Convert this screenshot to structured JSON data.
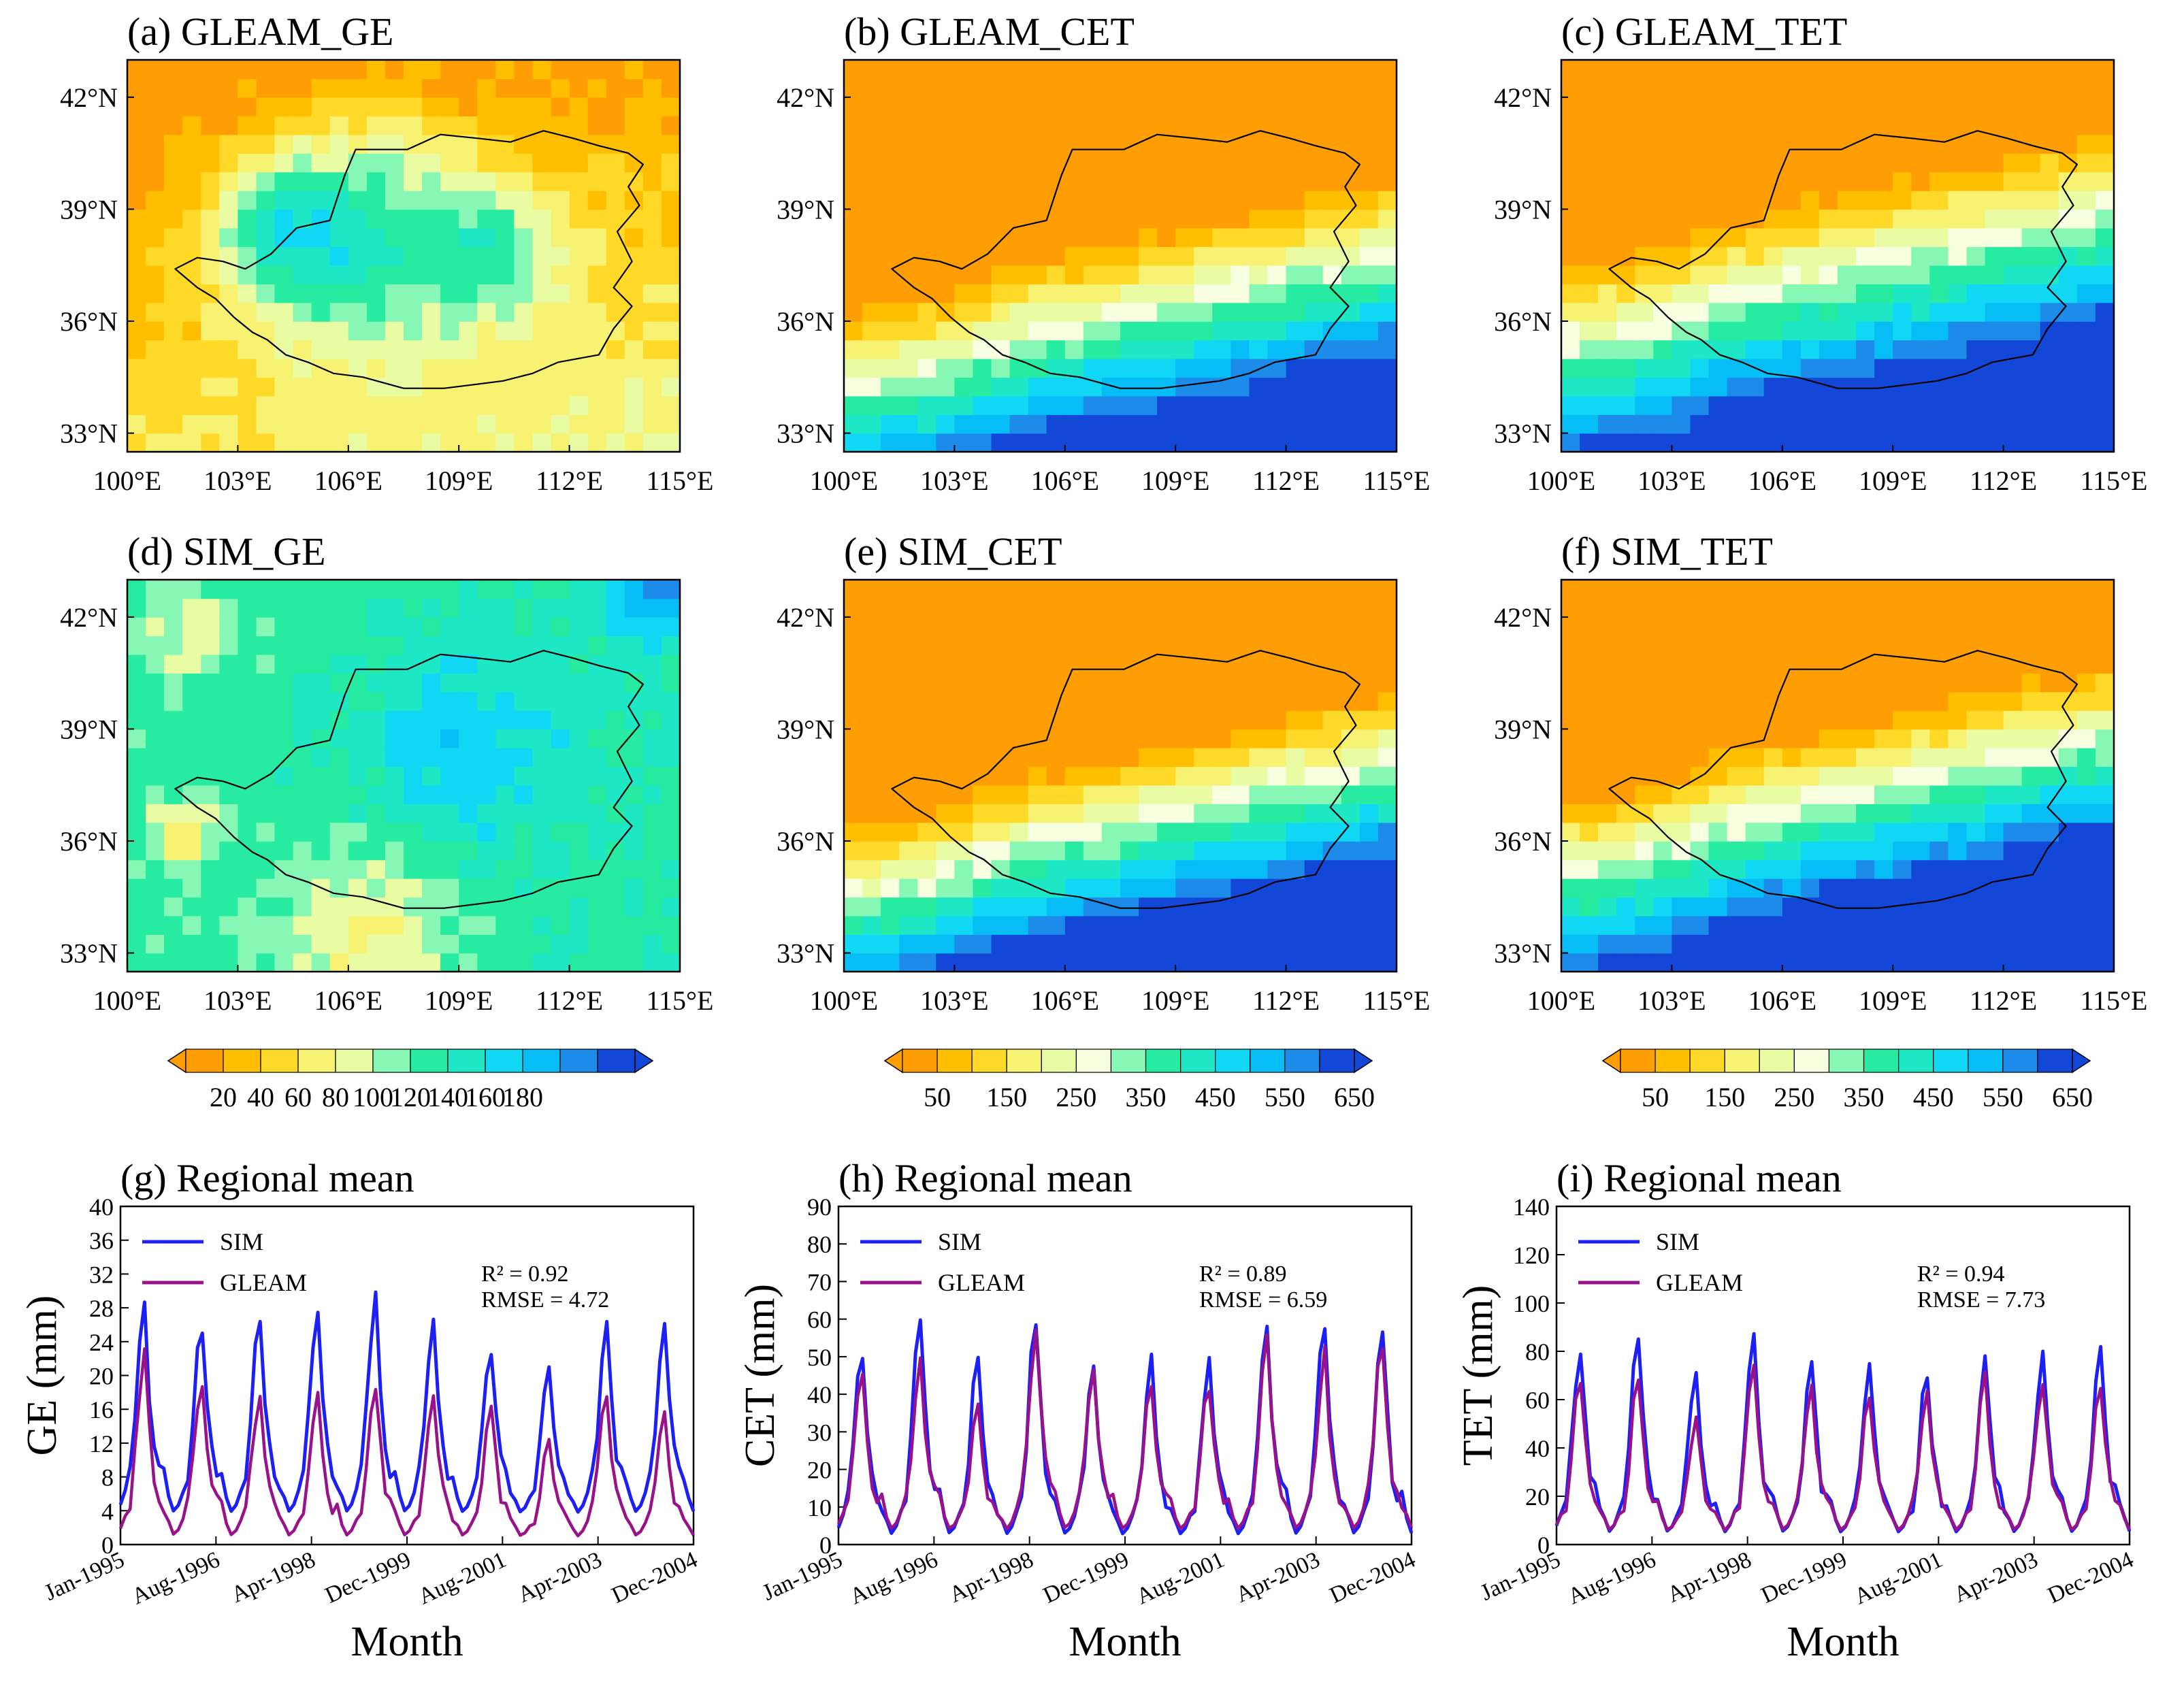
{
  "chart_data": [
    {
      "type": "heatmap",
      "title": "(a) GLEAM_GE",
      "colorbar": "ge",
      "xticks": [
        "100°E",
        "103°E",
        "106°E",
        "109°E",
        "112°E",
        "115°E"
      ],
      "yticks": [
        "33°N",
        "36°N",
        "39°N",
        "42°N"
      ],
      "xlim": [
        100,
        115
      ],
      "ylim": [
        32.5,
        43
      ],
      "field": {
        "a": 38,
        "b": [
          {
            "x": 106,
            "y": 38.5,
            "s": 3.3,
            "amp": 85
          },
          {
            "x": 104,
            "y": 38.5,
            "s": 1.6,
            "amp": 45
          },
          {
            "x": 110,
            "y": 38,
            "s": 1.9,
            "amp": 55
          }
        ],
        "gx": 1.5,
        "gy": -2.5
      }
    },
    {
      "type": "heatmap",
      "title": "(b) GLEAM_CET",
      "colorbar": "et",
      "xticks": [
        "100°E",
        "103°E",
        "106°E",
        "109°E",
        "112°E",
        "115°E"
      ],
      "yticks": [
        "33°N",
        "36°N",
        "39°N",
        "42°N"
      ],
      "xlim": [
        100,
        115
      ],
      "ylim": [
        32.5,
        43
      ],
      "field": {
        "a": 300,
        "ramp": [
          3,
          1,
          -135,
          108,
          36.3,
          60,
          230
        ]
      }
    },
    {
      "type": "heatmap",
      "title": "(c) GLEAM_TET",
      "colorbar": "et",
      "xticks": [
        "100°E",
        "103°E",
        "106°E",
        "109°E",
        "112°E",
        "115°E"
      ],
      "yticks": [
        "33°N",
        "36°N",
        "39°N",
        "42°N"
      ],
      "xlim": [
        100,
        115
      ],
      "ylim": [
        32.5,
        43
      ],
      "field": {
        "a": 330,
        "ramp": [
          3,
          1,
          -125,
          108,
          37.2,
          70,
          200
        ]
      }
    },
    {
      "type": "heatmap",
      "title": "(d) SIM_GE",
      "colorbar": "ge",
      "xticks": [
        "100°E",
        "103°E",
        "106°E",
        "109°E",
        "112°E",
        "115°E"
      ],
      "yticks": [
        "33°N",
        "36°N",
        "39°N",
        "42°N"
      ],
      "xlim": [
        100,
        115
      ],
      "ylim": [
        32.5,
        43
      ],
      "field": {
        "a": 110,
        "b": [
          {
            "x": 109,
            "y": 38.5,
            "s": 2.8,
            "amp": 30
          },
          {
            "x": 114.5,
            "y": 42.8,
            "s": 1.4,
            "amp": 50
          },
          {
            "x": 101.5,
            "y": 36.2,
            "s": 0.9,
            "amp": -50
          },
          {
            "x": 106.5,
            "y": 33.5,
            "s": 2.5,
            "amp": -40
          },
          {
            "x": 101.5,
            "y": 41.5,
            "s": 1.3,
            "amp": -30
          }
        ],
        "gx": 0.5,
        "gy": 0
      }
    },
    {
      "type": "heatmap",
      "title": "(e) SIM_CET",
      "colorbar": "et",
      "xticks": [
        "100°E",
        "103°E",
        "106°E",
        "109°E",
        "112°E",
        "115°E"
      ],
      "yticks": [
        "33°N",
        "36°N",
        "39°N",
        "42°N"
      ],
      "xlim": [
        100,
        115
      ],
      "ylim": [
        32.5,
        43
      ],
      "field": {
        "a": 300,
        "ramp": [
          3,
          1,
          -145,
          108,
          36.6,
          80,
          240
        ]
      }
    },
    {
      "type": "heatmap",
      "title": "(f) SIM_TET",
      "colorbar": "et",
      "xticks": [
        "100°E",
        "103°E",
        "106°E",
        "109°E",
        "112°E",
        "115°E"
      ],
      "yticks": [
        "33°N",
        "36°N",
        "39°N",
        "42°N"
      ],
      "xlim": [
        100,
        115
      ],
      "ylim": [
        32.5,
        43
      ],
      "field": {
        "a": 300,
        "ramp": [
          3,
          1,
          -140,
          108,
          37.3,
          90,
          230
        ]
      }
    },
    {
      "type": "line",
      "title": "(g) Regional mean",
      "xlabel": "Month",
      "ylabel": "GE (mm)",
      "ylim": [
        0,
        40
      ],
      "yticks": [
        "0",
        "4",
        "8",
        "12",
        "16",
        "20",
        "24",
        "28",
        "32",
        "36",
        "40"
      ],
      "xticks": [
        "Jan-1995",
        "Aug-1996",
        "Apr-1998",
        "Dec-1999",
        "Aug-2001",
        "Apr-2003",
        "Dec-2004"
      ],
      "stats": [
        "R² = 0.92",
        "RMSE = 4.72"
      ],
      "series": [
        {
          "name": "SIM",
          "peaks": [
            28,
            26,
            27,
            28,
            29,
            25.5,
            23,
            21,
            25.5,
            25.5
          ],
          "base": 3.5
        },
        {
          "name": "GLEAM",
          "peaks": [
            22.5,
            19.5,
            18,
            17.5,
            18.5,
            17.5,
            16,
            12.5,
            17.5,
            15.5
          ],
          "base": 0.8
        }
      ]
    },
    {
      "type": "line",
      "title": "(h) Regional mean",
      "xlabel": "Month",
      "ylabel": "CET (mm)",
      "ylim": [
        0,
        90
      ],
      "yticks": [
        "0",
        "10",
        "20",
        "30",
        "40",
        "50",
        "60",
        "70",
        "80",
        "90"
      ],
      "xticks": [
        "Jan-1995",
        "Aug-1996",
        "Apr-1998",
        "Dec-1999",
        "Aug-2001",
        "Apr-2003",
        "Dec-2004"
      ],
      "stats": [
        "R² = 0.89",
        "RMSE = 6.59"
      ],
      "series": [
        {
          "name": "SIM",
          "peaks": [
            52,
            61,
            51,
            58,
            48,
            49,
            49,
            56,
            60,
            57
          ],
          "base": 2
        },
        {
          "name": "GLEAM",
          "peaks": [
            45,
            48,
            37,
            56,
            46,
            43,
            43,
            53,
            50,
            54
          ],
          "base": 3.5
        }
      ]
    },
    {
      "type": "line",
      "title": "(i) Regional mean",
      "xlabel": "Month",
      "ylabel": "TET (mm)",
      "ylim": [
        0,
        140
      ],
      "yticks": [
        "0",
        "20",
        "40",
        "60",
        "80",
        "100",
        "120",
        "140"
      ],
      "xticks": [
        "Jan-1995",
        "Aug-1996",
        "Apr-1998",
        "Dec-1999",
        "Aug-2001",
        "Apr-2003",
        "Dec-2004"
      ],
      "stats": [
        "R² = 0.94",
        "RMSE = 7.73"
      ],
      "series": [
        {
          "name": "SIM",
          "peaks": [
            81,
            87,
            71,
            86,
            72,
            71,
            72,
            77,
            80,
            82
          ],
          "base": 4
        },
        {
          "name": "GLEAM",
          "peaks": [
            68,
            68,
            52,
            76,
            65,
            60,
            65,
            70,
            66,
            66
          ],
          "base": 5
        }
      ]
    }
  ],
  "colorbars": {
    "ge": {
      "labels": [
        "20",
        "40",
        "60",
        "80",
        "100",
        "120",
        "140",
        "160",
        "180"
      ],
      "min": 10,
      "max": 190,
      "colors": [
        "#FE9E04",
        "#FFBF00",
        "#FFD928",
        "#F8F272",
        "#E9FCA4",
        "#86F7B4",
        "#26EBA0",
        "#1DE7C4",
        "#10D8F4",
        "#06BDF6",
        "#1C8BE9",
        "#1347D8"
      ]
    },
    "et": {
      "labels": [
        "50",
        "150",
        "250",
        "350",
        "450",
        "550",
        "650"
      ],
      "min": 0,
      "max": 700,
      "colors": [
        "#FE9E04",
        "#FFBF00",
        "#FFD928",
        "#F8F272",
        "#E9FCA4",
        "#F7FFE0",
        "#86F7B4",
        "#26EBA0",
        "#1DE7C4",
        "#10D8F4",
        "#06BDF6",
        "#1C8BE9",
        "#1347D8"
      ]
    }
  },
  "line_colors": {
    "SIM": "#1d20f5",
    "GLEAM": "#9a128a"
  }
}
